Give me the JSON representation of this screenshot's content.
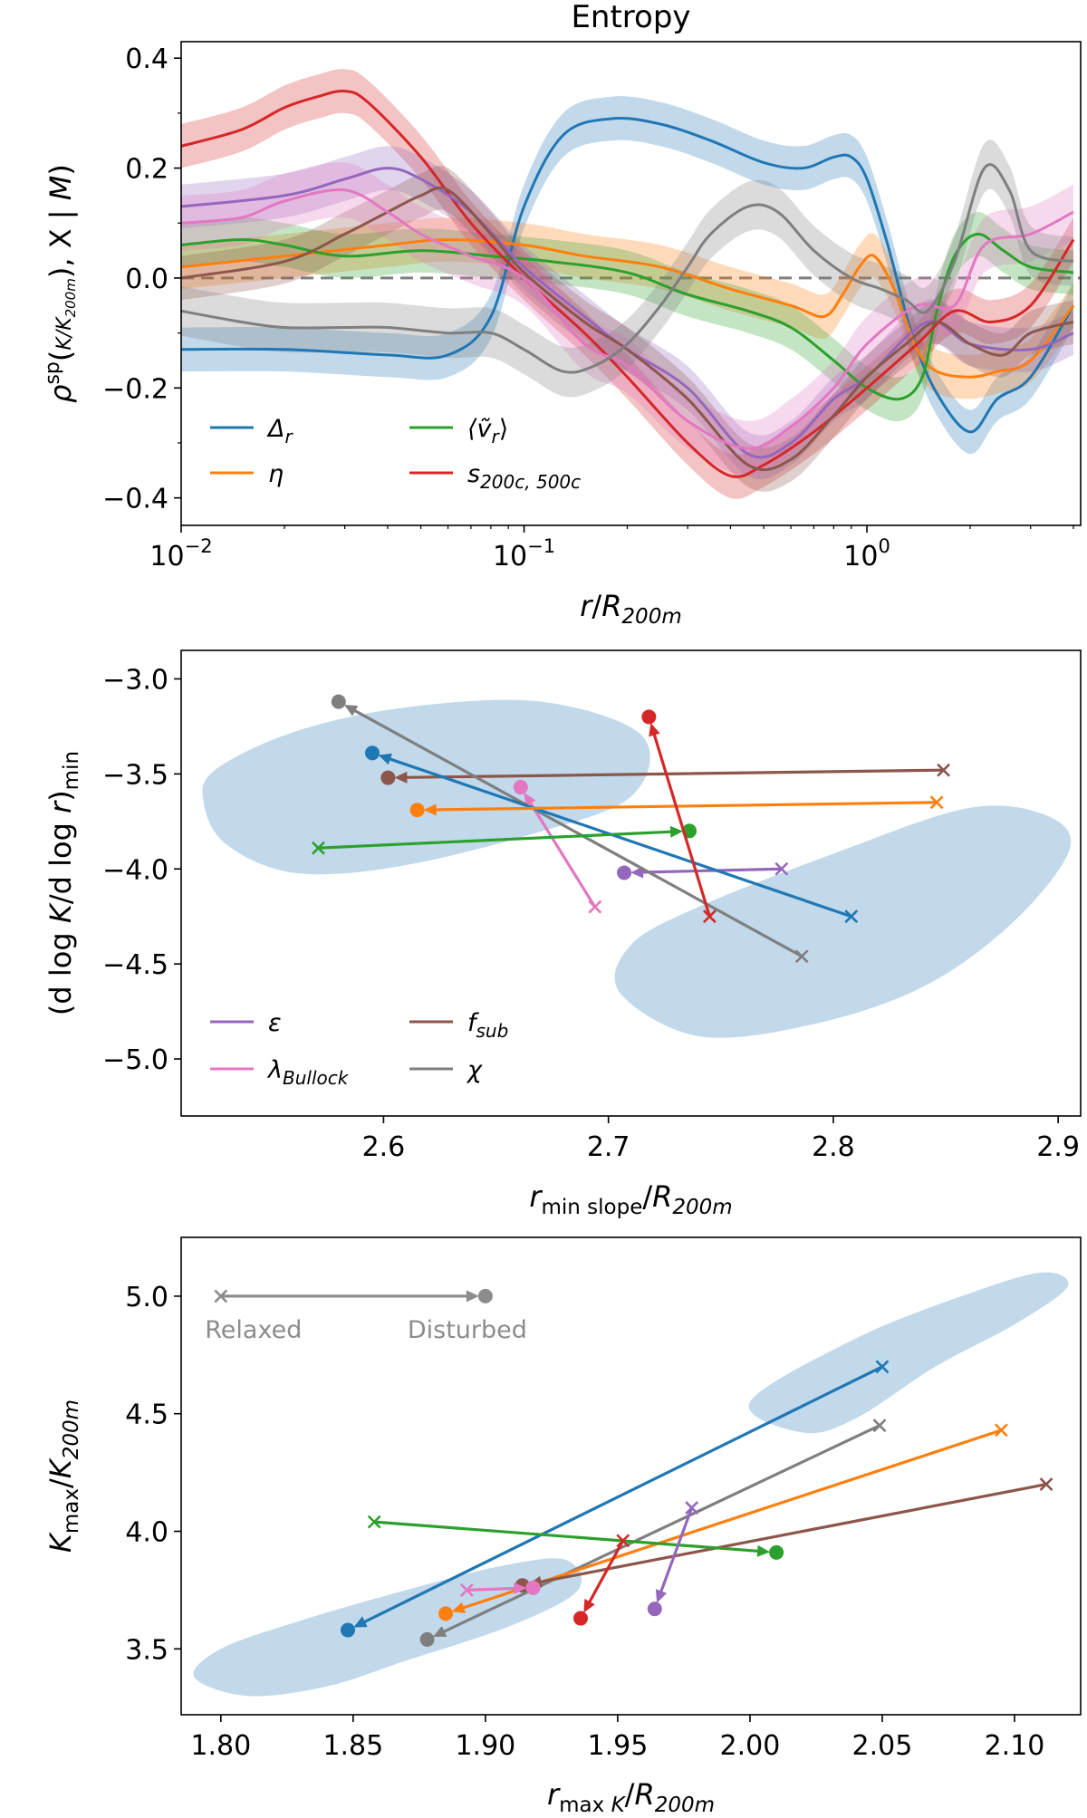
{
  "chart_data": [
    {
      "type": "line",
      "title": "Entropy",
      "xlabel": "r/R_200m",
      "ylabel": "ρ^sp(K/K_200m, X | M)",
      "xscale": "log",
      "xlim": [
        0.01,
        4.2
      ],
      "ylim": [
        -0.45,
        0.43
      ],
      "xticks": [
        {
          "v": 0.01,
          "base": "10",
          "exp": "−2"
        },
        {
          "v": 0.1,
          "base": "10",
          "exp": "−1"
        },
        {
          "v": 1,
          "base": "10",
          "exp": "0"
        }
      ],
      "yticks": [
        -0.4,
        -0.2,
        0.0,
        0.2,
        0.4
      ],
      "reference_line": 0.0,
      "legend_position": "lower-left",
      "series": [
        {
          "name": "Δ_r",
          "legend": {
            "main": "Δ",
            "sub": "r"
          },
          "color": "#1f77b4",
          "band": 0.04,
          "x": [
            0.01,
            0.02,
            0.04,
            0.06,
            0.08,
            0.1,
            0.13,
            0.18,
            0.25,
            0.35,
            0.5,
            0.65,
            0.8,
            0.9,
            1.0,
            1.15,
            1.35,
            1.6,
            2.0,
            2.4,
            3.0,
            4.0
          ],
          "y": [
            -0.13,
            -0.13,
            -0.14,
            -0.14,
            -0.07,
            0.13,
            0.26,
            0.29,
            0.28,
            0.25,
            0.21,
            0.2,
            0.22,
            0.22,
            0.18,
            0.06,
            -0.1,
            -0.21,
            -0.28,
            -0.22,
            -0.18,
            -0.05
          ]
        },
        {
          "name": "η",
          "legend": {
            "main": "η",
            "sub": ""
          },
          "color": "#ff7f0e",
          "band": 0.04,
          "x": [
            0.01,
            0.02,
            0.04,
            0.06,
            0.1,
            0.15,
            0.25,
            0.4,
            0.6,
            0.75,
            0.85,
            0.95,
            1.05,
            1.2,
            1.4,
            1.6,
            2.0,
            2.4,
            3.0,
            4.0
          ],
          "y": [
            0.02,
            0.04,
            0.06,
            0.07,
            0.06,
            0.04,
            0.02,
            -0.02,
            -0.05,
            -0.07,
            -0.03,
            0.02,
            0.04,
            -0.02,
            -0.13,
            -0.17,
            -0.18,
            -0.17,
            -0.15,
            -0.05
          ]
        },
        {
          "name": "⟨ṽ_r⟩",
          "legend": {
            "main": "⟨ṽ",
            "sub": "r",
            "tail": "⟩"
          },
          "color": "#2ca02c",
          "band": 0.04,
          "x": [
            0.01,
            0.015,
            0.02,
            0.03,
            0.05,
            0.08,
            0.12,
            0.2,
            0.3,
            0.45,
            0.6,
            0.8,
            1.0,
            1.25,
            1.45,
            1.6,
            1.8,
            2.1,
            2.5,
            3.0,
            4.0
          ],
          "y": [
            0.06,
            0.07,
            0.06,
            0.04,
            0.05,
            0.04,
            0.03,
            0.01,
            -0.03,
            -0.06,
            -0.09,
            -0.15,
            -0.2,
            -0.22,
            -0.18,
            -0.06,
            0.04,
            0.08,
            0.05,
            0.02,
            0.01
          ]
        },
        {
          "name": "s_200c,500c",
          "legend": {
            "main": "s",
            "sub": "200c, 500c"
          },
          "color": "#d62728",
          "band": 0.04,
          "x": [
            0.01,
            0.015,
            0.02,
            0.025,
            0.03,
            0.035,
            0.05,
            0.07,
            0.1,
            0.15,
            0.2,
            0.3,
            0.4,
            0.5,
            0.7,
            1.0,
            1.4,
            1.8,
            2.3,
            3.0,
            4.0
          ],
          "y": [
            0.24,
            0.27,
            0.31,
            0.33,
            0.34,
            0.32,
            0.22,
            0.1,
            0.0,
            -0.1,
            -0.18,
            -0.3,
            -0.36,
            -0.34,
            -0.28,
            -0.2,
            -0.12,
            -0.06,
            -0.08,
            -0.05,
            0.07
          ]
        },
        {
          "name": "ε",
          "legend": {
            "main": "ε",
            "sub": ""
          },
          "color": "#9467bd",
          "band": 0.04,
          "x": [
            0.01,
            0.02,
            0.03,
            0.04,
            0.05,
            0.07,
            0.1,
            0.15,
            0.2,
            0.3,
            0.45,
            0.6,
            0.8,
            1.0,
            1.5,
            2.0,
            3.0,
            4.0
          ],
          "y": [
            0.13,
            0.15,
            0.18,
            0.2,
            0.18,
            0.12,
            0.02,
            -0.07,
            -0.13,
            -0.2,
            -0.32,
            -0.3,
            -0.22,
            -0.18,
            -0.08,
            -0.12,
            -0.13,
            -0.1
          ]
        },
        {
          "name": "f_sub",
          "legend": {
            "main": "f",
            "sub": "sub"
          },
          "color": "#8c564b",
          "band": 0.04,
          "x": [
            0.01,
            0.02,
            0.03,
            0.04,
            0.05,
            0.06,
            0.08,
            0.1,
            0.15,
            0.2,
            0.3,
            0.45,
            0.6,
            0.8,
            1.0,
            1.3,
            1.6,
            2.0,
            2.5,
            3.0,
            4.0
          ],
          "y": [
            0.0,
            0.03,
            0.08,
            0.12,
            0.15,
            0.16,
            0.08,
            0.01,
            -0.08,
            -0.13,
            -0.22,
            -0.34,
            -0.33,
            -0.25,
            -0.18,
            -0.12,
            -0.08,
            -0.12,
            -0.14,
            -0.1,
            -0.08
          ]
        },
        {
          "name": "λ_Bullock",
          "legend": {
            "main": "λ",
            "sub": "Bullock"
          },
          "color": "#e377c2",
          "band": 0.05,
          "x": [
            0.01,
            0.015,
            0.02,
            0.03,
            0.04,
            0.05,
            0.07,
            0.1,
            0.15,
            0.2,
            0.3,
            0.45,
            0.6,
            0.8,
            1.0,
            1.4,
            1.8,
            2.2,
            3.0,
            4.0
          ],
          "y": [
            0.1,
            0.11,
            0.14,
            0.16,
            0.12,
            0.08,
            0.04,
            0.0,
            -0.12,
            -0.16,
            -0.26,
            -0.31,
            -0.27,
            -0.2,
            -0.12,
            -0.05,
            -0.05,
            0.06,
            0.08,
            0.12
          ]
        },
        {
          "name": "χ",
          "legend": {
            "main": "χ",
            "sub": ""
          },
          "color": "#7f7f7f",
          "band": 0.045,
          "x": [
            0.01,
            0.015,
            0.02,
            0.03,
            0.04,
            0.06,
            0.08,
            0.1,
            0.13,
            0.16,
            0.2,
            0.25,
            0.3,
            0.35,
            0.45,
            0.55,
            0.7,
            0.9,
            1.1,
            1.3,
            1.5,
            1.8,
            2.2,
            2.6,
            3.0,
            4.0
          ],
          "y": [
            -0.06,
            -0.08,
            -0.09,
            -0.09,
            -0.09,
            -0.1,
            -0.1,
            -0.13,
            -0.17,
            -0.16,
            -0.12,
            -0.05,
            0.02,
            0.08,
            0.13,
            0.12,
            0.05,
            0.0,
            -0.02,
            -0.04,
            -0.06,
            0.03,
            0.2,
            0.16,
            0.05,
            0.03
          ]
        }
      ]
    },
    {
      "type": "scatter",
      "xlabel": "r_min slope/R_200m",
      "ylabel": "(d log K/d log r)_min",
      "xlim": [
        2.51,
        2.91
      ],
      "ylim": [
        -5.3,
        -2.85
      ],
      "xticks": [
        2.6,
        2.7,
        2.8,
        2.9
      ],
      "yticks": [
        -5.0,
        -4.5,
        -4.0,
        -3.5,
        -3.0
      ],
      "marker_legend": {
        "relaxed": "×",
        "disturbed": "●"
      },
      "legend_position": "lower-left",
      "regions": [
        {
          "name": "disturbed-region",
          "points": [
            [
              2.525,
              -3.48
            ],
            [
              2.56,
              -3.28
            ],
            [
              2.61,
              -3.15
            ],
            [
              2.67,
              -3.12
            ],
            [
              2.715,
              -3.3
            ],
            [
              2.71,
              -3.62
            ],
            [
              2.665,
              -3.82
            ],
            [
              2.605,
              -3.99
            ],
            [
              2.56,
              -4.02
            ],
            [
              2.53,
              -3.87
            ],
            [
              2.52,
              -3.65
            ]
          ]
        },
        {
          "name": "relaxed-region",
          "points": [
            [
              2.74,
              -4.2
            ],
            [
              2.8,
              -3.92
            ],
            [
              2.86,
              -3.68
            ],
            [
              2.895,
              -3.72
            ],
            [
              2.905,
              -3.9
            ],
            [
              2.88,
              -4.28
            ],
            [
              2.84,
              -4.62
            ],
            [
              2.79,
              -4.82
            ],
            [
              2.74,
              -4.88
            ],
            [
              2.705,
              -4.65
            ],
            [
              2.71,
              -4.4
            ]
          ]
        }
      ],
      "pairs": [
        {
          "name": "ε",
          "color": "#9467bd",
          "relaxed": [
            2.777,
            -4.0
          ],
          "disturbed": [
            2.707,
            -4.02
          ]
        },
        {
          "name": "f_sub",
          "color": "#8c564b",
          "relaxed": [
            2.849,
            -3.48
          ],
          "disturbed": [
            2.602,
            -3.52
          ]
        },
        {
          "name": "λ_Bullock",
          "color": "#e377c2",
          "relaxed": [
            2.694,
            -4.2
          ],
          "disturbed": [
            2.661,
            -3.57
          ]
        },
        {
          "name": "χ",
          "color": "#7f7f7f",
          "relaxed": [
            2.786,
            -4.46
          ],
          "disturbed": [
            2.58,
            -3.12
          ]
        },
        {
          "name": "Δ_r",
          "color": "#1f77b4",
          "relaxed": [
            2.808,
            -4.25
          ],
          "disturbed": [
            2.595,
            -3.39
          ]
        },
        {
          "name": "η",
          "color": "#ff7f0e",
          "relaxed": [
            2.846,
            -3.65
          ],
          "disturbed": [
            2.615,
            -3.69
          ]
        },
        {
          "name": "⟨ṽ_r⟩",
          "color": "#2ca02c",
          "relaxed": [
            2.571,
            -3.89
          ],
          "disturbed": [
            2.736,
            -3.8
          ]
        },
        {
          "name": "s_200c,500c",
          "color": "#d62728",
          "relaxed": [
            2.745,
            -4.25
          ],
          "disturbed": [
            2.718,
            -3.2
          ]
        }
      ],
      "legend_series": [
        {
          "name": "ε",
          "legend": {
            "main": "ε",
            "sub": ""
          },
          "color": "#9467bd"
        },
        {
          "name": "f_sub",
          "legend": {
            "main": "f",
            "sub": "sub"
          },
          "color": "#8c564b"
        },
        {
          "name": "λ_Bullock",
          "legend": {
            "main": "λ",
            "sub": "Bullock"
          },
          "color": "#e377c2"
        },
        {
          "name": "χ",
          "legend": {
            "main": "χ",
            "sub": ""
          },
          "color": "#7f7f7f"
        }
      ]
    },
    {
      "type": "scatter",
      "xlabel": "r_max K/R_200m",
      "ylabel": "K_max/K_200m",
      "xlim": [
        1.785,
        2.125
      ],
      "ylim": [
        3.22,
        5.25
      ],
      "xticks": [
        1.8,
        1.85,
        1.9,
        1.95,
        2.0,
        2.05,
        2.1
      ],
      "yticks": [
        3.5,
        4.0,
        4.5,
        5.0
      ],
      "example": {
        "relaxed_label": "Relaxed",
        "disturbed_label": "Disturbed",
        "relaxed": [
          1.8,
          5.0
        ],
        "disturbed": [
          1.9,
          5.0
        ],
        "color": "#8c8c8c"
      },
      "regions": [
        {
          "name": "disturbed-region",
          "points": [
            [
              1.79,
              3.38
            ],
            [
              1.8,
              3.5
            ],
            [
              1.83,
              3.62
            ],
            [
              1.87,
              3.75
            ],
            [
              1.905,
              3.85
            ],
            [
              1.93,
              3.88
            ],
            [
              1.935,
              3.75
            ],
            [
              1.91,
              3.6
            ],
            [
              1.87,
              3.45
            ],
            [
              1.84,
              3.34
            ],
            [
              1.81,
              3.3
            ]
          ]
        },
        {
          "name": "relaxed-region",
          "points": [
            [
              2.0,
              4.55
            ],
            [
              2.04,
              4.82
            ],
            [
              2.08,
              5.0
            ],
            [
              2.11,
              5.1
            ],
            [
              2.12,
              5.04
            ],
            [
              2.1,
              4.88
            ],
            [
              2.07,
              4.7
            ],
            [
              2.04,
              4.48
            ],
            [
              2.02,
              4.42
            ]
          ]
        }
      ],
      "pairs": [
        {
          "name": "Δ_r",
          "color": "#1f77b4",
          "relaxed": [
            2.05,
            4.7
          ],
          "disturbed": [
            1.848,
            3.58
          ]
        },
        {
          "name": "χ",
          "color": "#7f7f7f",
          "relaxed": [
            2.049,
            4.45
          ],
          "disturbed": [
            1.878,
            3.54
          ]
        },
        {
          "name": "η",
          "color": "#ff7f0e",
          "relaxed": [
            2.095,
            4.43
          ],
          "disturbed": [
            1.885,
            3.65
          ]
        },
        {
          "name": "f_sub",
          "color": "#8c564b",
          "relaxed": [
            2.112,
            4.2
          ],
          "disturbed": [
            1.914,
            3.77
          ]
        },
        {
          "name": "⟨ṽ_r⟩",
          "color": "#2ca02c",
          "relaxed": [
            1.858,
            4.04
          ],
          "disturbed": [
            2.01,
            3.91
          ]
        },
        {
          "name": "s_200c,500c",
          "color": "#d62728",
          "relaxed": [
            1.952,
            3.96
          ],
          "disturbed": [
            1.936,
            3.63
          ]
        },
        {
          "name": "ε",
          "color": "#9467bd",
          "relaxed": [
            1.978,
            4.1
          ],
          "disturbed": [
            1.964,
            3.67
          ]
        },
        {
          "name": "λ_Bullock",
          "color": "#e377c2",
          "relaxed": [
            1.893,
            3.75
          ],
          "disturbed": [
            1.918,
            3.76
          ]
        }
      ]
    }
  ]
}
